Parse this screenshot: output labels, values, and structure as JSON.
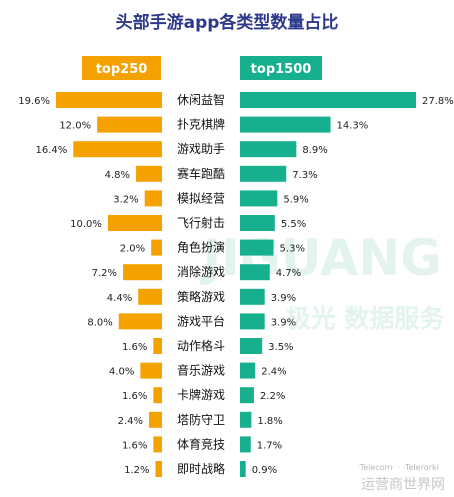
{
  "chart_data": {
    "type": "bar",
    "title": "头部手游app各类型数量占比",
    "categories": [
      "休闲益智",
      "扑克棋牌",
      "游戏助手",
      "赛车跑酷",
      "模拟经营",
      "飞行射击",
      "角色扮演",
      "消除游戏",
      "策略游戏",
      "游戏平台",
      "动作格斗",
      "音乐游戏",
      "卡牌游戏",
      "塔防守卫",
      "体育竞技",
      "即时战略"
    ],
    "series": [
      {
        "name": "top250",
        "color": "#f5a200",
        "values": [
          19.6,
          12.0,
          16.4,
          4.8,
          3.2,
          10.0,
          2.0,
          7.2,
          4.4,
          8.0,
          1.6,
          4.0,
          1.6,
          2.4,
          1.6,
          1.2
        ]
      },
      {
        "name": "top1500",
        "color": "#17b08e",
        "values": [
          27.8,
          14.3,
          8.9,
          7.3,
          5.9,
          5.5,
          5.3,
          4.7,
          3.9,
          3.9,
          3.5,
          2.4,
          2.2,
          1.8,
          1.7,
          0.9
        ]
      }
    ],
    "value_labels": {
      "top250": [
        "19.6%",
        "12.0%",
        "16.4%",
        "4.8%",
        "3.2%",
        "10.0%",
        "2.0%",
        "7.2%",
        "4.4%",
        "8.0%",
        "1.6%",
        "4.0%",
        "1.6%",
        "2.4%",
        "1.6%",
        "1.2%"
      ],
      "top1500": [
        "27.8%",
        "14.3%",
        "8.9%",
        "7.3%",
        "5.9%",
        "5.5%",
        "5.3%",
        "4.7%",
        "3.9%",
        "3.9%",
        "3.5%",
        "2.4%",
        "2.2%",
        "1.8%",
        "1.7%",
        "0.9%"
      ]
    },
    "legend_position": "top",
    "grid": false
  },
  "watermark": {
    "brand": "JIGUANG",
    "cn": "极光 数据服务",
    "footer_small": "·Telecom· · ·Telerorki",
    "footer_cn": "运营商世界网"
  },
  "colors": {
    "title": "#2d3a8c",
    "text": "#222222",
    "watermark": "#e3f3ee"
  }
}
